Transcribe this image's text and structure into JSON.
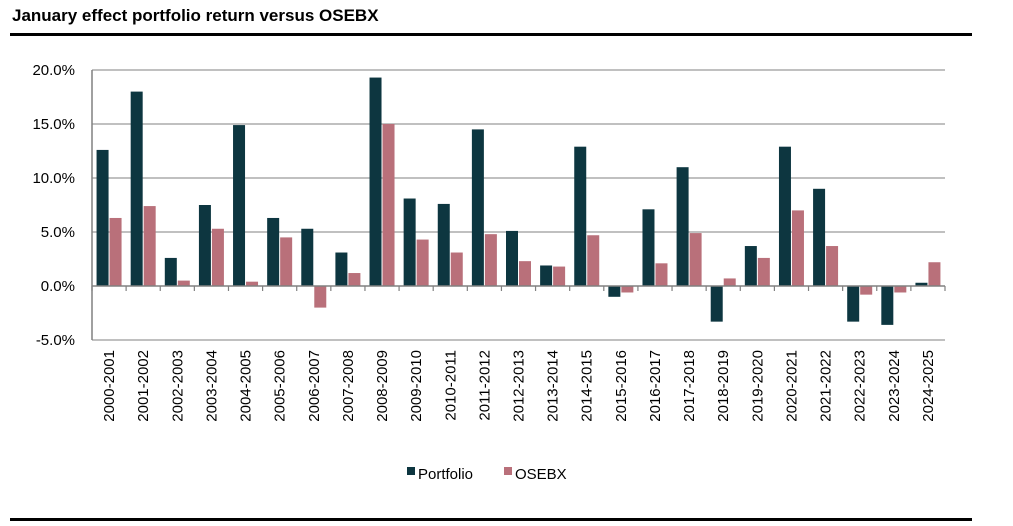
{
  "chart_data": {
    "type": "bar",
    "title": "January effect portfolio return versus OSEBX",
    "xlabel": "",
    "ylabel": "",
    "ylim": [
      -5,
      20
    ],
    "yticks": [
      -5,
      0,
      5,
      10,
      15,
      20
    ],
    "ytick_labels": [
      "-5.0%",
      "0.0%",
      "5.0%",
      "10.0%",
      "15.0%",
      "20.0%"
    ],
    "grid": true,
    "legend_position": "bottom-center",
    "categories": [
      "2000-2001",
      "2001-2002",
      "2002-2003",
      "2003-2004",
      "2004-2005",
      "2005-2006",
      "2006-2007",
      "2007-2008",
      "2008-2009",
      "2009-2010",
      "2010-2011",
      "2011-2012",
      "2012-2013",
      "2013-2014",
      "2014-2015",
      "2015-2016",
      "2016-2017",
      "2017-2018",
      "2018-2019",
      "2019-2020",
      "2020-2021",
      "2021-2022",
      "2022-2023",
      "2023-2024",
      "2024-2025"
    ],
    "series": [
      {
        "name": "Portfolio",
        "color": "#0d3640",
        "values": [
          12.6,
          18.0,
          2.6,
          7.5,
          14.9,
          6.3,
          5.3,
          3.1,
          19.3,
          8.1,
          7.6,
          14.5,
          5.1,
          1.9,
          12.9,
          -1.0,
          7.1,
          11.0,
          -3.3,
          3.7,
          12.9,
          9.0,
          -3.3,
          -3.6,
          0.3
        ]
      },
      {
        "name": "OSEBX",
        "color": "#b9707a",
        "values": [
          6.3,
          7.4,
          0.5,
          5.3,
          0.4,
          4.5,
          -2.0,
          1.2,
          15.0,
          4.3,
          3.1,
          4.8,
          2.3,
          1.8,
          4.7,
          -0.6,
          2.1,
          4.9,
          0.7,
          2.6,
          7.0,
          3.7,
          -0.8,
          -0.6,
          2.2
        ]
      }
    ]
  }
}
